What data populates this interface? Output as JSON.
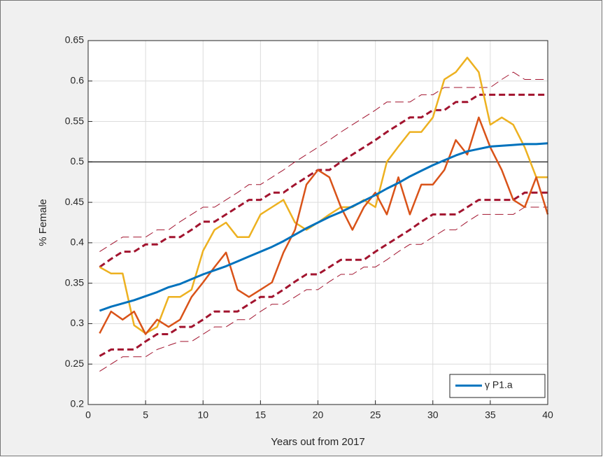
{
  "chart_data": {
    "type": "line",
    "xlabel": "Years out from 2017",
    "ylabel": "% Female",
    "x": [
      1,
      2,
      3,
      4,
      5,
      6,
      7,
      8,
      9,
      10,
      11,
      12,
      13,
      14,
      15,
      16,
      17,
      18,
      19,
      20,
      21,
      22,
      23,
      24,
      25,
      26,
      27,
      28,
      29,
      30,
      31,
      32,
      33,
      34,
      35,
      36,
      37,
      38,
      39,
      40
    ],
    "xlim": [
      0,
      40
    ],
    "xticks": [
      0,
      5,
      10,
      15,
      20,
      25,
      30,
      35,
      40
    ],
    "ylim": [
      0.2,
      0.65
    ],
    "yticks": [
      0.2,
      0.25,
      0.3,
      0.35,
      0.4,
      0.45,
      0.5,
      0.55,
      0.6,
      0.65
    ],
    "grid": true,
    "legend_location": "southeast",
    "reference_line": {
      "y": 0.5,
      "color": "#000000"
    },
    "series": [
      {
        "color": "#A2142F",
        "line_width": 1,
        "dash": true,
        "values": [
          0.389,
          0.398,
          0.407,
          0.407,
          0.407,
          0.416,
          0.416,
          0.426,
          0.435,
          0.444,
          0.444,
          0.453,
          0.462,
          0.472,
          0.472,
          0.481,
          0.49,
          0.5,
          0.509,
          0.518,
          0.527,
          0.537,
          0.546,
          0.555,
          0.564,
          0.574,
          0.574,
          0.574,
          0.583,
          0.583,
          0.592,
          0.592,
          0.592,
          0.592,
          0.592,
          0.602,
          0.611,
          0.602,
          0.602,
          0.602
        ]
      },
      {
        "color": "#A2142F",
        "line_width": 1,
        "dash": true,
        "values": [
          0.241,
          0.25,
          0.259,
          0.259,
          0.259,
          0.268,
          0.273,
          0.278,
          0.278,
          0.287,
          0.296,
          0.296,
          0.305,
          0.305,
          0.315,
          0.324,
          0.324,
          0.333,
          0.342,
          0.342,
          0.352,
          0.361,
          0.361,
          0.37,
          0.37,
          0.379,
          0.389,
          0.398,
          0.398,
          0.407,
          0.416,
          0.416,
          0.426,
          0.435,
          0.435,
          0.435,
          0.435,
          0.444,
          0.444,
          0.444
        ]
      },
      {
        "color": "#A2142F",
        "line_width": 3,
        "dash": true,
        "values": [
          0.37,
          0.38,
          0.389,
          0.389,
          0.398,
          0.398,
          0.407,
          0.407,
          0.416,
          0.426,
          0.426,
          0.435,
          0.444,
          0.453,
          0.453,
          0.462,
          0.462,
          0.472,
          0.481,
          0.49,
          0.49,
          0.5,
          0.509,
          0.518,
          0.527,
          0.537,
          0.546,
          0.555,
          0.555,
          0.564,
          0.564,
          0.574,
          0.574,
          0.583,
          0.583,
          0.583,
          0.583,
          0.583,
          0.583,
          0.583
        ]
      },
      {
        "color": "#A2142F",
        "line_width": 3,
        "dash": true,
        "values": [
          0.26,
          0.268,
          0.268,
          0.268,
          0.278,
          0.287,
          0.287,
          0.296,
          0.296,
          0.305,
          0.315,
          0.315,
          0.315,
          0.324,
          0.333,
          0.333,
          0.342,
          0.352,
          0.361,
          0.361,
          0.37,
          0.379,
          0.379,
          0.379,
          0.389,
          0.398,
          0.407,
          0.416,
          0.426,
          0.435,
          0.435,
          0.435,
          0.444,
          0.453,
          0.453,
          0.453,
          0.453,
          0.462,
          0.462,
          0.462
        ]
      },
      {
        "color": "#EDB120",
        "line_width": 2.5,
        "dash": false,
        "values": [
          0.37,
          0.362,
          0.362,
          0.298,
          0.288,
          0.296,
          0.333,
          0.333,
          0.342,
          0.39,
          0.416,
          0.425,
          0.407,
          0.407,
          0.435,
          0.444,
          0.453,
          0.425,
          0.416,
          0.425,
          0.435,
          0.444,
          0.444,
          0.453,
          0.444,
          0.5,
          0.519,
          0.537,
          0.537,
          0.555,
          0.602,
          0.611,
          0.629,
          0.611,
          0.546,
          0.555,
          0.546,
          0.518,
          0.481,
          0.481
        ]
      },
      {
        "color": "#D95319",
        "line_width": 2.5,
        "dash": false,
        "values": [
          0.288,
          0.315,
          0.305,
          0.315,
          0.287,
          0.305,
          0.296,
          0.305,
          0.333,
          0.351,
          0.37,
          0.388,
          0.342,
          0.333,
          0.342,
          0.351,
          0.388,
          0.416,
          0.472,
          0.49,
          0.481,
          0.444,
          0.416,
          0.444,
          0.462,
          0.435,
          0.481,
          0.435,
          0.472,
          0.472,
          0.49,
          0.527,
          0.509,
          0.555,
          0.518,
          0.49,
          0.453,
          0.444,
          0.481,
          0.435
        ]
      },
      {
        "name": "γ P1.a",
        "color": "#0072BD",
        "line_width": 3,
        "dash": false,
        "values": [
          0.316,
          0.321,
          0.325,
          0.329,
          0.334,
          0.339,
          0.345,
          0.349,
          0.355,
          0.361,
          0.366,
          0.371,
          0.377,
          0.383,
          0.389,
          0.395,
          0.402,
          0.41,
          0.418,
          0.425,
          0.432,
          0.438,
          0.445,
          0.452,
          0.459,
          0.467,
          0.474,
          0.482,
          0.489,
          0.496,
          0.502,
          0.508,
          0.513,
          0.516,
          0.519,
          0.52,
          0.521,
          0.522,
          0.522,
          0.523
        ]
      }
    ]
  }
}
